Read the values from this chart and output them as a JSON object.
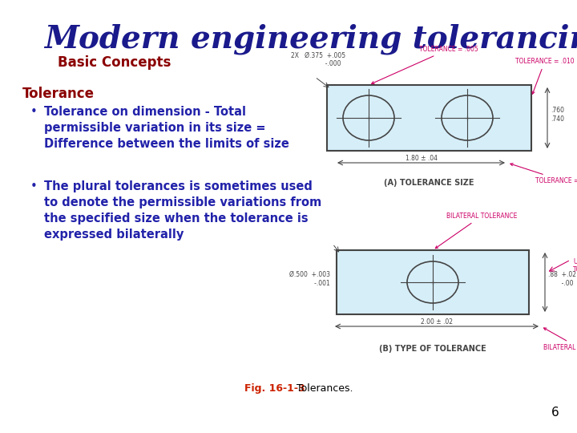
{
  "background_color": "#ffffff",
  "title": "Modern engineering tolerancing",
  "title_color": "#1a1a8c",
  "title_fontsize": 28,
  "subtitle": "Basic Concepts",
  "subtitle_color": "#8b0000",
  "subtitle_fontsize": 12,
  "section_header": "Tolerance",
  "section_header_color": "#8b0000",
  "section_header_fontsize": 12,
  "bullet_color": "#2222aa",
  "bullet_fontsize": 10.5,
  "bullets": [
    [
      "Tolerance on dimension - Total",
      "permissible variation in its size =",
      "Difference between the limits of size"
    ],
    [
      "The plural tolerances is sometimes used",
      "to denote the permissible variations from",
      "the specified size when the tolerance is",
      "expressed bilaterally"
    ]
  ],
  "fig_label": "Fig. 16-1-3",
  "fig_label_color": "#cc2200",
  "fig_caption": "Tolerances.",
  "fig_caption_color": "#000000",
  "page_number": "6",
  "diagram_bg": "#d6eef8",
  "diagram_border": "#444444",
  "annotation_color": "#cc0066",
  "dim_color": "#444444"
}
